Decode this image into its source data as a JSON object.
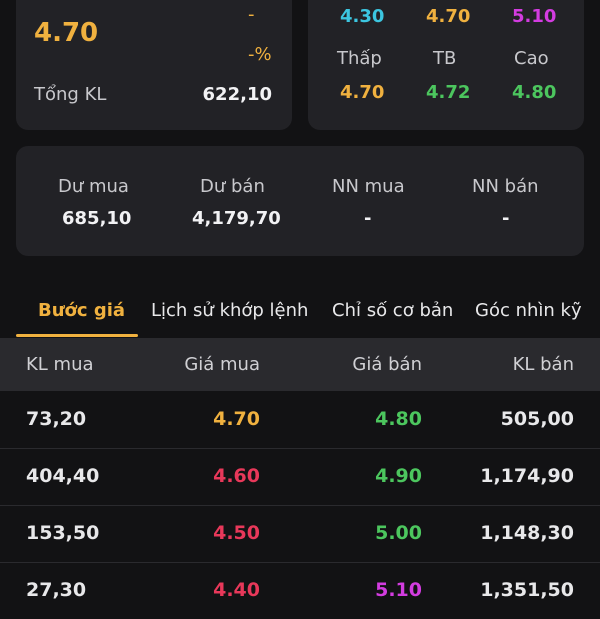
{
  "summary": {
    "price": "4.70",
    "change": "-",
    "change_pct": "-%",
    "total_volume_label": "Tổng KL",
    "total_volume": "622,10"
  },
  "limits": {
    "floor": "4.30",
    "ref": "4.70",
    "ceiling": "5.10",
    "low_label": "Thấp",
    "avg_label": "TB",
    "high_label": "Cao",
    "low": "4.70",
    "avg": "4.72",
    "high": "4.80"
  },
  "orders": {
    "buy_remain_label": "Dư mua",
    "sell_remain_label": "Dư bán",
    "foreign_buy_label": "NN mua",
    "foreign_sell_label": "NN bán",
    "buy_remain": "685,10",
    "sell_remain": "4,179,70",
    "foreign_buy": "-",
    "foreign_sell": "-"
  },
  "tabs": [
    "Bước giá",
    "Lịch sử khớp lệnh",
    "Chỉ số cơ bản",
    "Góc nhìn kỹ"
  ],
  "table": {
    "headers": [
      "KL mua",
      "Giá mua",
      "Giá bán",
      "KL bán"
    ],
    "rows": [
      [
        "73,20",
        "4.70",
        "4.80",
        "505,00"
      ],
      [
        "404,40",
        "4.60",
        "4.90",
        "1,174,90"
      ],
      [
        "153,50",
        "4.50",
        "5.00",
        "1,148,30"
      ],
      [
        "27,30",
        "4.40",
        "5.10",
        "1,351,50"
      ]
    ]
  },
  "colors": {
    "reference": "#f0b13f",
    "down": "#e8385a",
    "up": "#4cc65e",
    "ceiling": "#d33ce0",
    "floor": "#3cc6e0"
  }
}
